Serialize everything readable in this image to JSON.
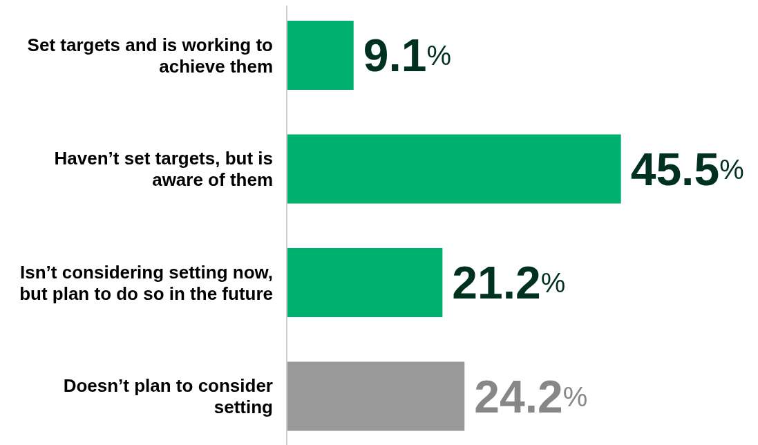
{
  "chart_data": {
    "type": "bar",
    "orientation": "horizontal",
    "categories": [
      "Set targets and is working to achieve them",
      "Haven’t set targets, but is aware of them",
      "Isn’t considering setting now, but plan to do so in the future",
      "Doesn’t plan to consider setting"
    ],
    "values": [
      9.1,
      45.5,
      21.2,
      24.2
    ],
    "colors": [
      "#00b06e",
      "#00b06e",
      "#00b06e",
      "#999999"
    ],
    "value_labels": [
      "9.1%",
      "45.5%",
      "21.2%",
      "24.2%"
    ],
    "grid": false,
    "legend": false
  }
}
